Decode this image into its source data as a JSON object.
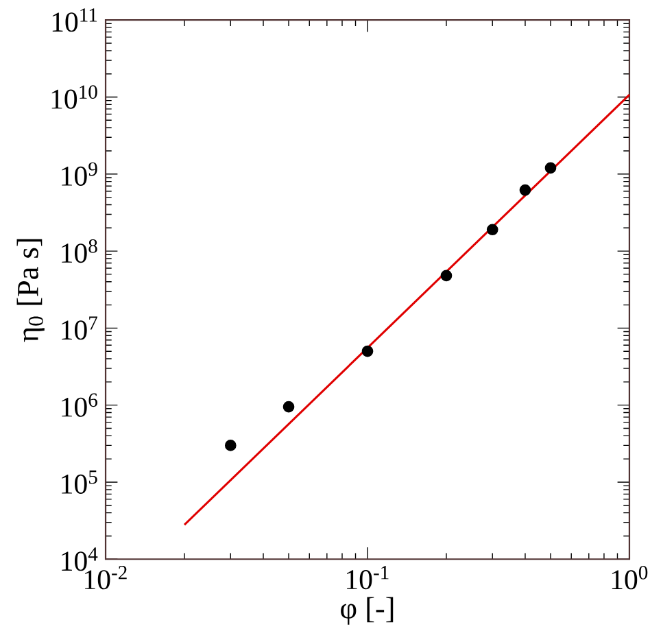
{
  "chart_data": {
    "type": "scatter",
    "xlabel": "φ [-]",
    "ylabel": "η$_{0}$ [Pa s]",
    "log": "xy",
    "xlim": [
      0.01,
      1
    ],
    "ylim": [
      10000,
      100000000000
    ],
    "xticks": [
      {
        "value": 0.01,
        "label": "10$^{-2}$"
      },
      {
        "value": 0.1,
        "label": "10$^{-1}$"
      },
      {
        "value": 1,
        "label": "10$^{0}$"
      }
    ],
    "yticks": [
      {
        "value": 10000,
        "label": "10$^{4}$"
      },
      {
        "value": 100000,
        "label": "10$^{5}$"
      },
      {
        "value": 1000000,
        "label": "10$^{6}$"
      },
      {
        "value": 10000000,
        "label": "10$^{7}$"
      },
      {
        "value": 100000000,
        "label": "10$^{8}$"
      },
      {
        "value": 1000000000,
        "label": "10$^{9}$"
      },
      {
        "value": 10000000000,
        "label": "10$^{10}$"
      },
      {
        "value": 100000000000,
        "label": "10$^{11}$"
      }
    ],
    "grid": false,
    "series": [
      {
        "type": "line",
        "color": "#e00000",
        "marker": "none",
        "line_style": "solid",
        "x": [
          0.02,
          1
        ],
        "values": [
          28000,
          10700000000
        ]
      },
      {
        "type": "scatter",
        "color": "#000000",
        "marker": "circle",
        "x": [
          0.03,
          0.05
        ],
        "values": [
          300000,
          950000
        ]
      },
      {
        "color": "#000000",
        "marker": "circle",
        "x": [
          0.1,
          0.2,
          0.3,
          0.4,
          0.5
        ],
        "values": [
          5000000,
          48000000,
          190000000,
          620000000,
          1200000000
        ]
      }
    ]
  }
}
